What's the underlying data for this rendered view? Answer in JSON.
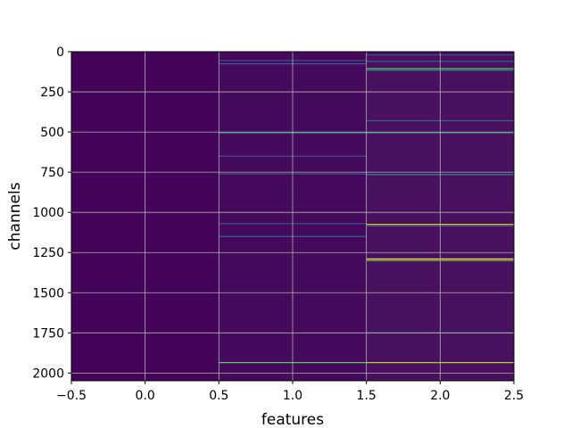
{
  "chart_data": {
    "type": "heatmap",
    "title": "",
    "xlabel": "features",
    "ylabel": "channels",
    "xlim": [
      -0.5,
      2.5
    ],
    "ylim": [
      2048,
      0
    ],
    "y_inverted": true,
    "grid": true,
    "colormap": "viridis",
    "background_color": "#440154",
    "x_ticks": [
      -0.5,
      0.0,
      0.5,
      1.0,
      1.5,
      2.0,
      2.5
    ],
    "x_tick_labels": [
      "−0.5",
      "0.0",
      "0.5",
      "1.0",
      "1.5",
      "2.0",
      "2.5"
    ],
    "y_ticks": [
      0,
      250,
      500,
      750,
      1000,
      1250,
      1500,
      1750,
      2000
    ],
    "y_tick_labels": [
      "0",
      "250",
      "500",
      "750",
      "1000",
      "1250",
      "1500",
      "1750",
      "2000"
    ],
    "columns": [
      {
        "feature": 0,
        "base_color": "#44045a",
        "bright_rows": []
      },
      {
        "feature": 1,
        "base_color": "#460a5c",
        "bright_rows": [
          {
            "channel": 55,
            "color": "#3b528b"
          },
          {
            "channel": 75,
            "color": "#31688e"
          },
          {
            "channel": 505,
            "color": "#21918c"
          },
          {
            "channel": 650,
            "color": "#3b528b"
          },
          {
            "channel": 760,
            "color": "#3b528b"
          },
          {
            "channel": 1070,
            "color": "#3b528b"
          },
          {
            "channel": 1150,
            "color": "#31688e"
          },
          {
            "channel": 1935,
            "color": "#5ec962"
          }
        ]
      },
      {
        "feature": 2,
        "base_color": "#48105e",
        "bright_rows": [
          {
            "channel": 20,
            "color": "#3b528b"
          },
          {
            "channel": 60,
            "color": "#31688e"
          },
          {
            "channel": 105,
            "color": "#5ec962"
          },
          {
            "channel": 115,
            "color": "#21918c"
          },
          {
            "channel": 430,
            "color": "#31688e"
          },
          {
            "channel": 505,
            "color": "#21918c"
          },
          {
            "channel": 765,
            "color": "#21918c"
          },
          {
            "channel": 1075,
            "color": "#d8e219"
          },
          {
            "channel": 1085,
            "color": "#3b528b"
          },
          {
            "channel": 1290,
            "color": "#fde725"
          },
          {
            "channel": 1300,
            "color": "#5ec962"
          },
          {
            "channel": 1750,
            "color": "#21918c"
          },
          {
            "channel": 1935,
            "color": "#b5de2b"
          }
        ]
      }
    ]
  }
}
